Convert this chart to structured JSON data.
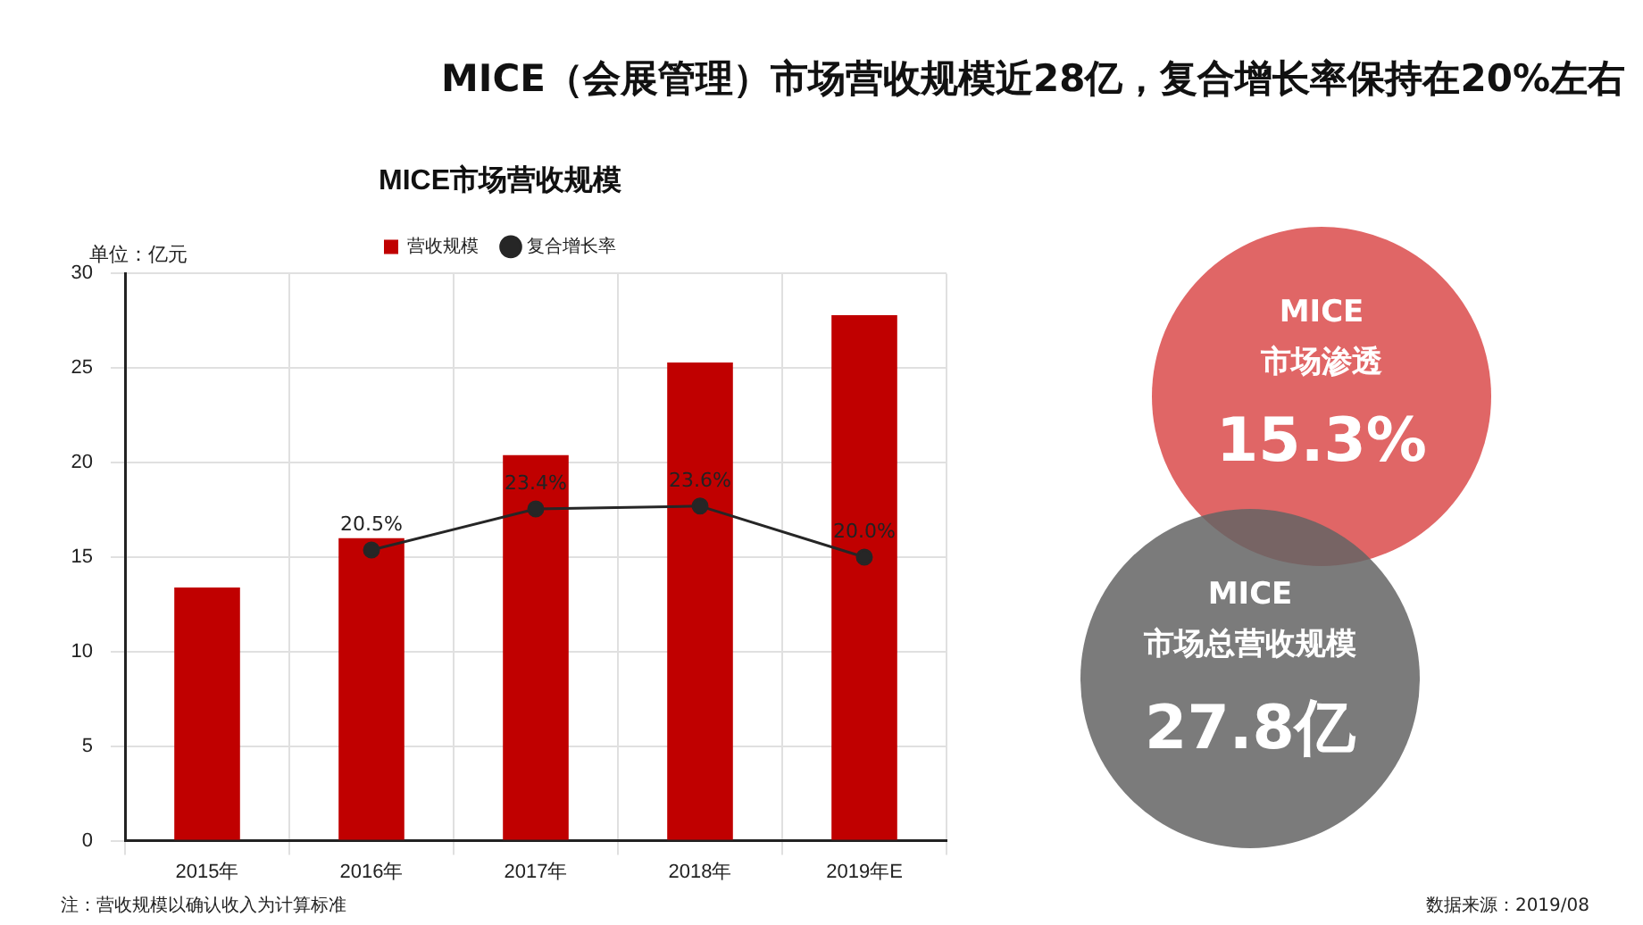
{
  "chart_data": [
    {
      "type": "bar",
      "title": "MICE（会展管理）市场营收规模近28亿，复合增长率保持在20%左右",
      "subtitle": "MICE市场营收规模",
      "ylabel": "单位：亿元",
      "categories": [
        "2015年",
        "2016年",
        "2017年",
        "2018年",
        "2019年E"
      ],
      "series": [
        {
          "name": "营收规模",
          "color": "#c00000",
          "values": [
            13.4,
            16.0,
            20.4,
            25.3,
            27.8
          ]
        },
        {
          "name": "复合增长率",
          "type": "line",
          "axis": "y2",
          "color": "#262626",
          "values": [
            null,
            20.5,
            23.4,
            23.6,
            20.0
          ],
          "value_labels": [
            null,
            "20.5%",
            "23.4%",
            "23.6%",
            "20.0%"
          ]
        }
      ],
      "ylim": [
        0,
        30
      ],
      "yticks": [
        0,
        5,
        10,
        15,
        20,
        25,
        30
      ],
      "y2lim": [
        0,
        40
      ],
      "grid": true,
      "legend": "top",
      "marker": "circle",
      "line_style": "solid",
      "annotations": [
        "注：营收规模以确认收入为计算标准",
        "数据来源：2019/08"
      ]
    },
    {
      "type": "other",
      "annotations": [
        "MICE",
        "市场渗透",
        "15.3%",
        "MICE",
        "市场总营收规模",
        "27.8亿"
      ]
    }
  ]
}
